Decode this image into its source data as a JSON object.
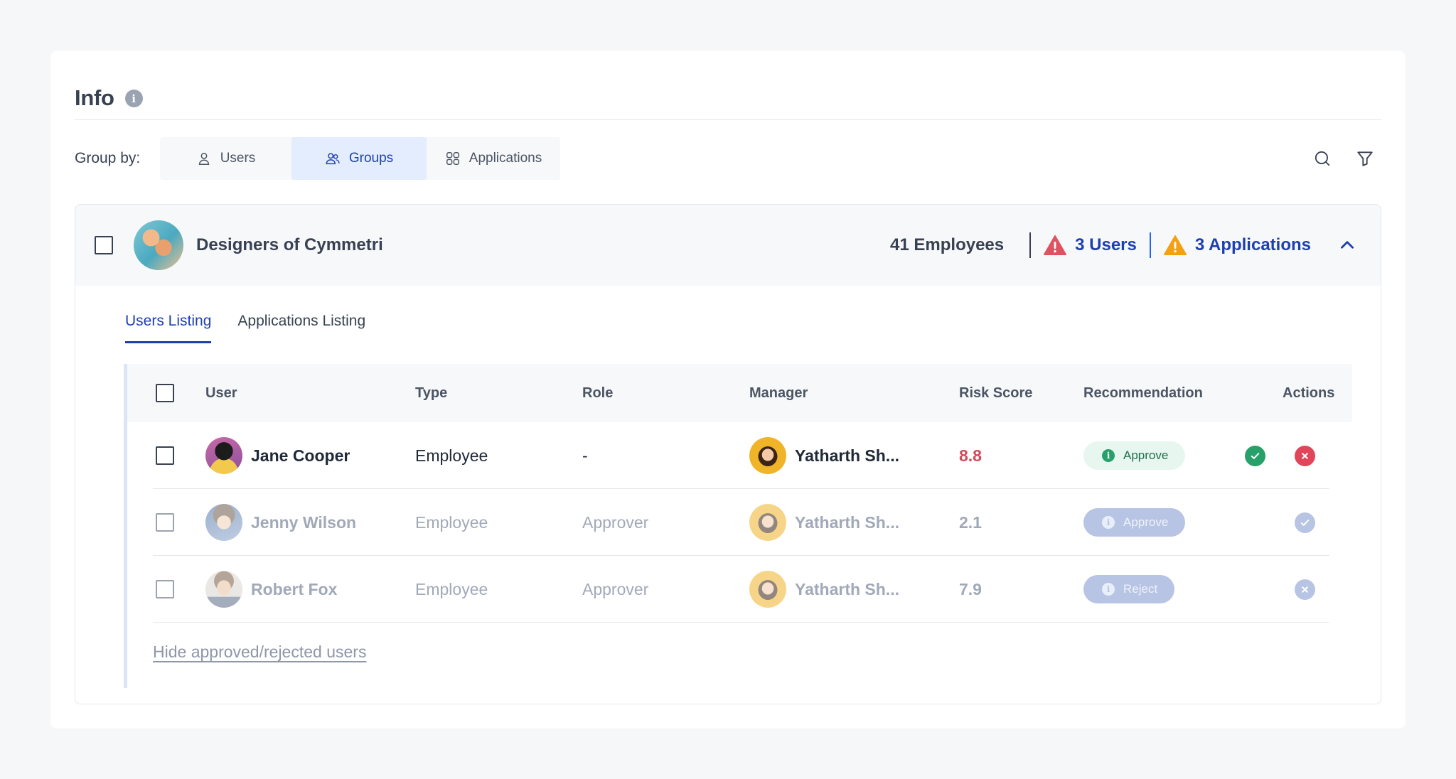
{
  "header": {
    "title": "Info",
    "info_icon": "info-icon"
  },
  "group_by": {
    "label": "Group by:",
    "options": [
      {
        "label": "Users",
        "icon": "user-icon",
        "active": false
      },
      {
        "label": "Groups",
        "icon": "users-icon",
        "active": true
      },
      {
        "label": "Applications",
        "icon": "grid-icon",
        "active": false
      }
    ]
  },
  "tools": {
    "search_icon": "search-icon",
    "filter_icon": "filter-icon"
  },
  "group": {
    "name": "Designers of Cymmetri",
    "employees": "41 Employees",
    "users_flag": "3 Users",
    "apps_flag": "3 Applications"
  },
  "tabs": [
    {
      "label": "Users Listing",
      "active": true
    },
    {
      "label": "Applications Listing",
      "active": false
    }
  ],
  "table": {
    "headers": [
      "User",
      "Type",
      "Role",
      "Manager",
      "Risk Score",
      "Recommendation",
      "Actions"
    ],
    "rows": [
      {
        "user": "Jane Cooper",
        "type": "Employee",
        "role": "-",
        "manager": "Yatharth Sh...",
        "risk": "8.8",
        "recommendation": "Approve",
        "state": "pending"
      },
      {
        "user": "Jenny Wilson",
        "type": "Employee",
        "role": "Approver",
        "manager": "Yatharth Sh...",
        "risk": "2.1",
        "recommendation": "Approve",
        "state": "approved"
      },
      {
        "user": "Robert Fox",
        "type": "Employee",
        "role": "Approver",
        "manager": "Yatharth Sh...",
        "risk": "7.9",
        "recommendation": "Reject",
        "state": "rejected"
      }
    ],
    "hide_link": "Hide approved/rejected users"
  },
  "colors": {
    "accent": "#1e40af",
    "danger": "#d14b5a",
    "success": "#27a06a",
    "warning": "#f59e0b"
  }
}
